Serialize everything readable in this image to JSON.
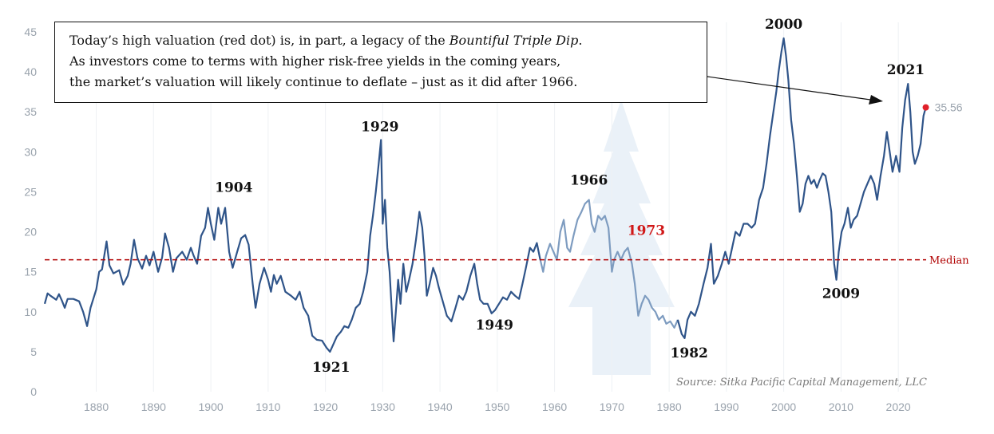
{
  "chart_data": {
    "type": "line",
    "ylim": [
      0,
      45
    ],
    "xlim": [
      1871,
      2025
    ],
    "yticks": [
      "0",
      "5",
      "10",
      "15",
      "20",
      "25",
      "30",
      "35",
      "40",
      "45"
    ],
    "xticks": [
      "1880",
      "1890",
      "1900",
      "1910",
      "1920",
      "1930",
      "1940",
      "1950",
      "1960",
      "1970",
      "1980",
      "1990",
      "2000",
      "2010",
      "2020"
    ],
    "grid": "vertical",
    "series": [
      {
        "color": "#2f5489",
        "highlight_color": "#7e9cc0",
        "highlight_range": [
          1958,
          1982
        ],
        "points": [
          [
            1871,
            11.0
          ],
          [
            1871.5,
            12.3
          ],
          [
            1872,
            12.0
          ],
          [
            1873,
            11.5
          ],
          [
            1873.5,
            12.2
          ],
          [
            1874,
            11.4
          ],
          [
            1874.5,
            10.5
          ],
          [
            1875,
            11.6
          ],
          [
            1876,
            11.6
          ],
          [
            1877,
            11.3
          ],
          [
            1877.7,
            10.0
          ],
          [
            1878.4,
            8.2
          ],
          [
            1879,
            10.5
          ],
          [
            1880,
            12.8
          ],
          [
            1880.5,
            15.0
          ],
          [
            1881,
            15.3
          ],
          [
            1881.8,
            18.8
          ],
          [
            1882.3,
            15.8
          ],
          [
            1883,
            14.8
          ],
          [
            1884,
            15.2
          ],
          [
            1884.7,
            13.4
          ],
          [
            1885.5,
            14.5
          ],
          [
            1886,
            16.0
          ],
          [
            1886.6,
            19.0
          ],
          [
            1887.2,
            16.7
          ],
          [
            1888,
            15.4
          ],
          [
            1888.7,
            17.0
          ],
          [
            1889.3,
            15.8
          ],
          [
            1890,
            17.5
          ],
          [
            1890.8,
            15.0
          ],
          [
            1891.5,
            16.8
          ],
          [
            1892,
            19.8
          ],
          [
            1892.7,
            18.0
          ],
          [
            1893.4,
            15.0
          ],
          [
            1894,
            16.7
          ],
          [
            1895,
            17.5
          ],
          [
            1895.8,
            16.5
          ],
          [
            1896.5,
            18.0
          ],
          [
            1897,
            17.0
          ],
          [
            1897.6,
            16.0
          ],
          [
            1898.3,
            19.5
          ],
          [
            1899,
            20.5
          ],
          [
            1899.5,
            23.0
          ],
          [
            1900,
            21.0
          ],
          [
            1900.6,
            19.0
          ],
          [
            1901.3,
            23.0
          ],
          [
            1901.8,
            21.0
          ],
          [
            1902.5,
            23.0
          ],
          [
            1903.2,
            17.5
          ],
          [
            1903.8,
            15.5
          ],
          [
            1904.6,
            17.5
          ],
          [
            1905.3,
            19.2
          ],
          [
            1906,
            19.6
          ],
          [
            1906.6,
            18.4
          ],
          [
            1907.3,
            13.5
          ],
          [
            1907.8,
            10.5
          ],
          [
            1908.5,
            13.5
          ],
          [
            1909.3,
            15.5
          ],
          [
            1910,
            14.0
          ],
          [
            1910.5,
            12.5
          ],
          [
            1911,
            14.6
          ],
          [
            1911.5,
            13.5
          ],
          [
            1912.2,
            14.5
          ],
          [
            1913,
            12.5
          ],
          [
            1914,
            12.0
          ],
          [
            1914.8,
            11.5
          ],
          [
            1915.5,
            12.5
          ],
          [
            1916.2,
            10.5
          ],
          [
            1917,
            9.5
          ],
          [
            1917.7,
            7.0
          ],
          [
            1918.5,
            6.5
          ],
          [
            1919.4,
            6.4
          ],
          [
            1920.2,
            5.5
          ],
          [
            1920.8,
            5.0
          ],
          [
            1921.3,
            5.8
          ],
          [
            1922,
            6.9
          ],
          [
            1922.7,
            7.5
          ],
          [
            1923.3,
            8.2
          ],
          [
            1924,
            8.0
          ],
          [
            1924.6,
            9.0
          ],
          [
            1925.3,
            10.5
          ],
          [
            1926,
            11.0
          ],
          [
            1926.6,
            12.5
          ],
          [
            1927.3,
            15.0
          ],
          [
            1927.8,
            19.5
          ],
          [
            1928.3,
            22.0
          ],
          [
            1928.8,
            25.0
          ],
          [
            1929.3,
            28.5
          ],
          [
            1929.7,
            31.5
          ],
          [
            1930,
            21.0
          ],
          [
            1930.4,
            24.0
          ],
          [
            1930.8,
            18.0
          ],
          [
            1931.2,
            15.0
          ],
          [
            1931.6,
            10.0
          ],
          [
            1931.9,
            6.3
          ],
          [
            1932.3,
            10.0
          ],
          [
            1932.7,
            14.0
          ],
          [
            1933.1,
            11.0
          ],
          [
            1933.6,
            16.0
          ],
          [
            1934.1,
            12.5
          ],
          [
            1934.6,
            14.0
          ],
          [
            1935.2,
            16.0
          ],
          [
            1935.8,
            19.0
          ],
          [
            1936.4,
            22.5
          ],
          [
            1936.9,
            20.5
          ],
          [
            1937.3,
            17.0
          ],
          [
            1937.7,
            12.0
          ],
          [
            1938.2,
            13.5
          ],
          [
            1938.8,
            15.5
          ],
          [
            1939.3,
            14.5
          ],
          [
            1939.8,
            13.0
          ],
          [
            1940.4,
            11.5
          ],
          [
            1941.2,
            9.5
          ],
          [
            1942,
            8.8
          ],
          [
            1942.7,
            10.5
          ],
          [
            1943.3,
            12.0
          ],
          [
            1944,
            11.5
          ],
          [
            1944.6,
            12.5
          ],
          [
            1945.3,
            14.5
          ],
          [
            1946,
            16.0
          ],
          [
            1946.5,
            13.5
          ],
          [
            1947,
            11.5
          ],
          [
            1947.6,
            11.0
          ],
          [
            1948.3,
            11.0
          ],
          [
            1949,
            9.8
          ],
          [
            1949.6,
            10.2
          ],
          [
            1950.3,
            11.0
          ],
          [
            1951,
            11.8
          ],
          [
            1951.7,
            11.5
          ],
          [
            1952.4,
            12.5
          ],
          [
            1953.1,
            12.0
          ],
          [
            1953.8,
            11.6
          ],
          [
            1954.4,
            13.5
          ],
          [
            1955,
            15.5
          ],
          [
            1955.7,
            18.0
          ],
          [
            1956.3,
            17.5
          ],
          [
            1956.9,
            18.6
          ],
          [
            1957.5,
            16.5
          ],
          [
            1958,
            15.0
          ],
          [
            1958.5,
            17.0
          ],
          [
            1959.2,
            18.5
          ],
          [
            1959.8,
            17.5
          ],
          [
            1960.4,
            16.5
          ],
          [
            1961,
            20.0
          ],
          [
            1961.6,
            21.5
          ],
          [
            1962.2,
            18.0
          ],
          [
            1962.7,
            17.5
          ],
          [
            1963.3,
            19.5
          ],
          [
            1964,
            21.5
          ],
          [
            1964.7,
            22.5
          ],
          [
            1965.3,
            23.5
          ],
          [
            1966,
            24.0
          ],
          [
            1966.5,
            21.0
          ],
          [
            1967,
            20.0
          ],
          [
            1967.6,
            22.0
          ],
          [
            1968.2,
            21.5
          ],
          [
            1968.8,
            22.0
          ],
          [
            1969.4,
            20.5
          ],
          [
            1970,
            15.0
          ],
          [
            1970.4,
            16.5
          ],
          [
            1971,
            17.5
          ],
          [
            1971.6,
            16.5
          ],
          [
            1972.2,
            17.5
          ],
          [
            1972.8,
            18.0
          ],
          [
            1973.5,
            16.0
          ],
          [
            1974,
            13.5
          ],
          [
            1974.6,
            9.5
          ],
          [
            1975.2,
            11.0
          ],
          [
            1975.8,
            12.0
          ],
          [
            1976.4,
            11.5
          ],
          [
            1977,
            10.5
          ],
          [
            1977.6,
            10.0
          ],
          [
            1978.2,
            9.0
          ],
          [
            1978.9,
            9.5
          ],
          [
            1979.5,
            8.5
          ],
          [
            1980.2,
            8.8
          ],
          [
            1980.9,
            8.0
          ],
          [
            1981.5,
            9.0
          ],
          [
            1982.2,
            7.2
          ],
          [
            1982.7,
            6.7
          ],
          [
            1983.2,
            9.0
          ],
          [
            1983.8,
            10.0
          ],
          [
            1984.5,
            9.5
          ],
          [
            1985.2,
            11.0
          ],
          [
            1986,
            13.5
          ],
          [
            1986.7,
            15.5
          ],
          [
            1987.3,
            18.5
          ],
          [
            1987.8,
            13.5
          ],
          [
            1988.5,
            14.5
          ],
          [
            1989.2,
            16.0
          ],
          [
            1989.8,
            17.5
          ],
          [
            1990.4,
            16.0
          ],
          [
            1991,
            18.0
          ],
          [
            1991.6,
            20.0
          ],
          [
            1992.3,
            19.5
          ],
          [
            1993,
            21.0
          ],
          [
            1993.7,
            21.0
          ],
          [
            1994.4,
            20.5
          ],
          [
            1995,
            21.0
          ],
          [
            1995.7,
            24.0
          ],
          [
            1996.4,
            25.5
          ],
          [
            1997,
            28.5
          ],
          [
            1997.6,
            32.0
          ],
          [
            1998.2,
            35.0
          ],
          [
            1998.7,
            37.5
          ],
          [
            1999.1,
            40.0
          ],
          [
            1999.6,
            42.5
          ],
          [
            2000,
            44.2
          ],
          [
            2000.4,
            42.0
          ],
          [
            2000.8,
            39.0
          ],
          [
            2001.3,
            34.0
          ],
          [
            2001.8,
            31.0
          ],
          [
            2002.3,
            27.0
          ],
          [
            2002.8,
            22.5
          ],
          [
            2003.3,
            23.5
          ],
          [
            2003.8,
            26.0
          ],
          [
            2004.3,
            27.0
          ],
          [
            2004.8,
            26.0
          ],
          [
            2005.3,
            26.5
          ],
          [
            2005.8,
            25.5
          ],
          [
            2006.3,
            26.5
          ],
          [
            2006.8,
            27.3
          ],
          [
            2007.3,
            27.0
          ],
          [
            2007.8,
            25.0
          ],
          [
            2008.3,
            22.5
          ],
          [
            2008.8,
            16.0
          ],
          [
            2009.2,
            14.0
          ],
          [
            2009.6,
            17.5
          ],
          [
            2010.1,
            20.0
          ],
          [
            2010.6,
            21.0
          ],
          [
            2011.2,
            23.0
          ],
          [
            2011.7,
            20.5
          ],
          [
            2012.2,
            21.5
          ],
          [
            2012.8,
            22.0
          ],
          [
            2013.4,
            23.5
          ],
          [
            2014,
            25.0
          ],
          [
            2014.6,
            26.0
          ],
          [
            2015.2,
            27.0
          ],
          [
            2015.8,
            26.0
          ],
          [
            2016.3,
            24.0
          ],
          [
            2016.9,
            27.0
          ],
          [
            2017.5,
            29.5
          ],
          [
            2018,
            32.5
          ],
          [
            2018.5,
            30.0
          ],
          [
            2019,
            27.5
          ],
          [
            2019.6,
            29.5
          ],
          [
            2020.2,
            27.5
          ],
          [
            2020.7,
            33.0
          ],
          [
            2021.2,
            36.5
          ],
          [
            2021.7,
            38.5
          ],
          [
            2022.1,
            35.0
          ],
          [
            2022.5,
            30.0
          ],
          [
            2022.9,
            28.5
          ],
          [
            2023.4,
            29.5
          ],
          [
            2023.9,
            31.0
          ],
          [
            2024.4,
            34.5
          ],
          [
            2024.8,
            35.56
          ]
        ]
      }
    ],
    "last_point": {
      "x": 2024.8,
      "y": 35.56,
      "label": "35.56",
      "color": "#e0202a"
    },
    "median": {
      "y": 16.5,
      "label": "Median",
      "color": "#b00000"
    },
    "annotations": [
      {
        "text": "1904",
        "x": 1904,
        "y": 25,
        "color": "#111111"
      },
      {
        "text": "1921",
        "x": 1921,
        "y": 2.5,
        "color": "#111111"
      },
      {
        "text": "1929",
        "x": 1929.5,
        "y": 32.6,
        "color": "#111111"
      },
      {
        "text": "1949",
        "x": 1949.5,
        "y": 7.8,
        "color": "#111111"
      },
      {
        "text": "1966",
        "x": 1966,
        "y": 25.9,
        "color": "#111111"
      },
      {
        "text": "1973",
        "x": 1976,
        "y": 19.6,
        "color": "#d01818"
      },
      {
        "text": "1982",
        "x": 1983.5,
        "y": 4.3,
        "color": "#111111"
      },
      {
        "text": "2000",
        "x": 2000,
        "y": 45.4,
        "color": "#111111"
      },
      {
        "text": "2009",
        "x": 2010,
        "y": 11.7,
        "color": "#111111"
      },
      {
        "text": "2021",
        "x": 2021.3,
        "y": 39.7,
        "color": "#111111"
      }
    ],
    "callout": {
      "lines": [
        [
          "Today’s high valuation (red dot) is, in part, a legacy of the ",
          "Bountiful Triple Dip",
          "."
        ],
        [
          "As investors come to terms with higher risk-free yields in the coming years,"
        ],
        [
          "the market’s valuation will likely continue to deflate – just as it did after 1966."
        ]
      ]
    },
    "source": "Source: Sitka Pacific Capital Management, LLC"
  }
}
